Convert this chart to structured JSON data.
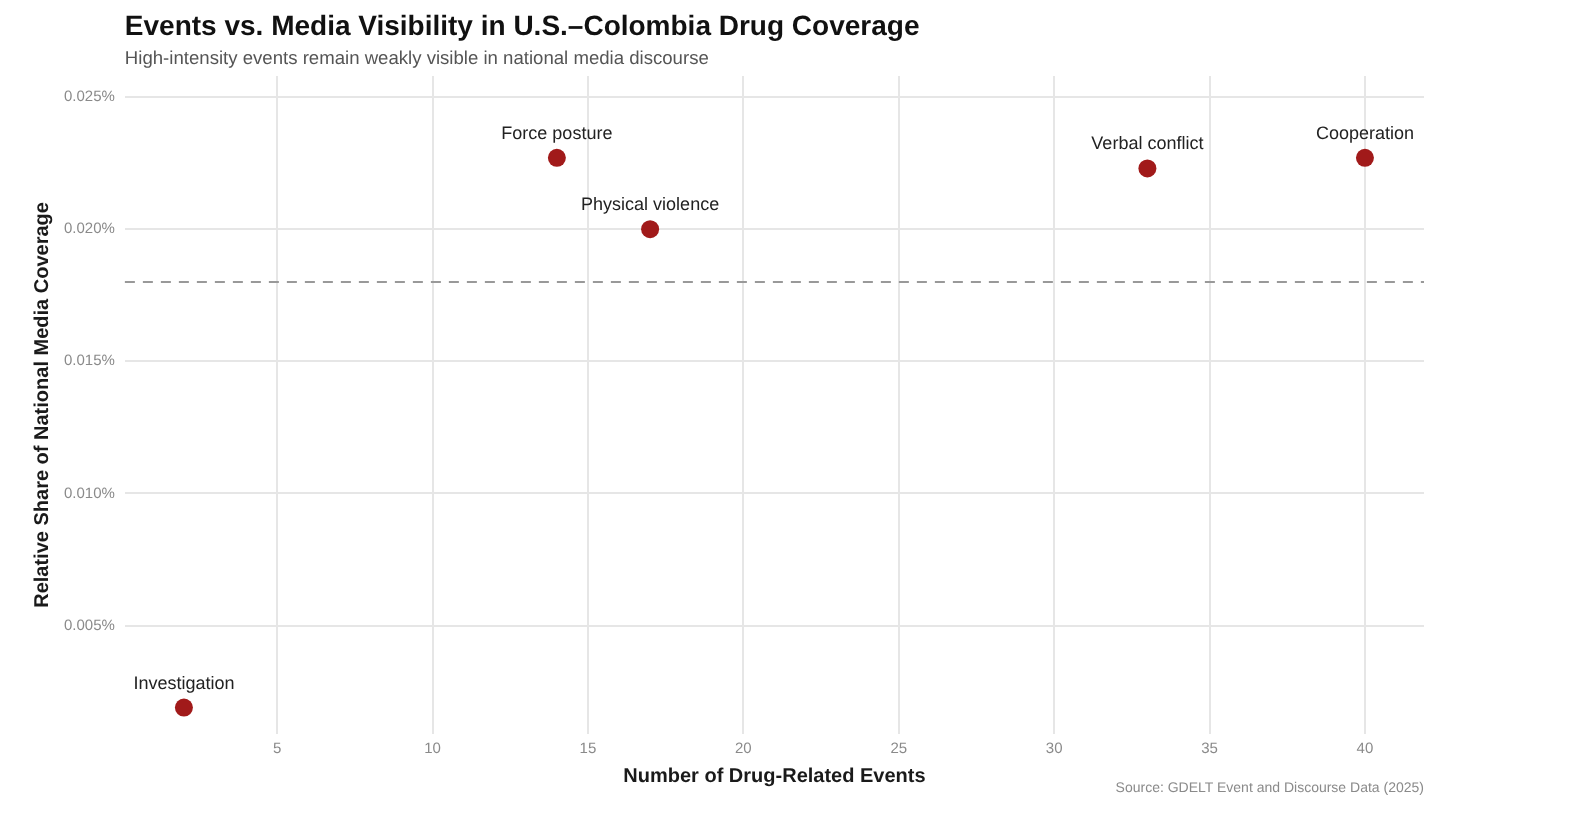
{
  "chart_data": {
    "type": "scatter",
    "title": "Events vs. Media Visibility in U.S.–Colombia Drug Coverage",
    "subtitle": "High-intensity events remain weakly visible in national media discourse",
    "xlabel": "Number of Drug-Related Events",
    "ylabel": "Relative Share of National Media Coverage",
    "x": [
      2,
      14,
      17,
      33,
      40
    ],
    "values": [
      0.0019,
      0.0227,
      0.02,
      0.0223,
      0.0227
    ],
    "color": "#a11a1a",
    "marker": "circle",
    "xlim": [
      0.1,
      41.9
    ],
    "xticks": [
      5,
      10,
      15,
      20,
      25,
      30,
      35,
      40
    ],
    "ylim": [
      0.0009,
      0.0258
    ],
    "yticks": [
      {
        "value": 0.005,
        "label": "0.005%"
      },
      {
        "value": 0.01,
        "label": "0.010%"
      },
      {
        "value": 0.015,
        "label": "0.015%"
      },
      {
        "value": 0.02,
        "label": "0.020%"
      },
      {
        "value": 0.025,
        "label": "0.025%"
      }
    ],
    "grid": true,
    "ref_lines": [
      {
        "axis": "y",
        "value": 0.018,
        "color": "#999999",
        "line_style": "dashed"
      }
    ],
    "annotations": [
      {
        "text": "Investigation",
        "x": 2,
        "y": 0.0019
      },
      {
        "text": "Force posture",
        "x": 14,
        "y": 0.0227
      },
      {
        "text": "Physical violence",
        "x": 17,
        "y": 0.02
      },
      {
        "text": "Verbal conflict",
        "x": 33,
        "y": 0.0223
      },
      {
        "text": "Cooperation",
        "x": 40,
        "y": 0.0227
      },
      "Source: GDELT Event and Discourse Data (2025)"
    ]
  }
}
